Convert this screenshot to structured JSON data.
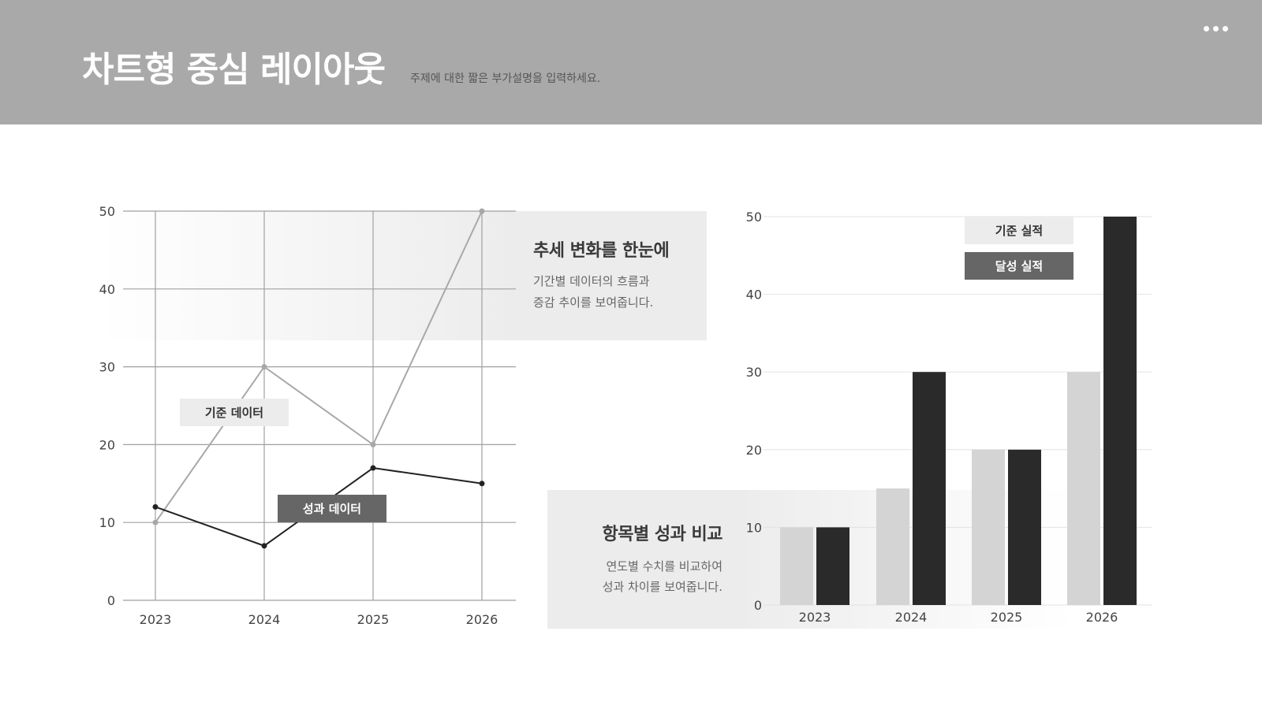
{
  "header": {
    "title": "차트형 중심 레이아웃",
    "subtitle": "주제에 대한 짧은 부가설명을 입력하세요."
  },
  "cards": {
    "trend": {
      "heading": "추세 변화를 한눈에",
      "line1": "기간별 데이터의 흐름과",
      "line2": "증감 추이를 보여줍니다."
    },
    "compare": {
      "heading": "항목별 성과 비교",
      "line1": "연도별 수치를 비교하여",
      "line2": "성과 차이를 보여줍니다."
    }
  },
  "colors": {
    "header": "#a9a9a9",
    "light": "#a8a8a8",
    "dark": "#222222",
    "bar_light": "#d4d4d4",
    "bar_dark": "#2a2a2a",
    "tag_light": "#ececec",
    "tag_dark": "#666666"
  },
  "chart_data": [
    {
      "type": "line",
      "x": [
        "2023",
        "2024",
        "2025",
        "2026"
      ],
      "ylim": [
        0,
        50
      ],
      "yticks": [
        0,
        10,
        20,
        30,
        40,
        50
      ],
      "grid": true,
      "series": [
        {
          "name": "기준 데이터",
          "values": [
            10,
            30,
            20,
            50
          ]
        },
        {
          "name": "성과 데이터",
          "values": [
            12,
            7,
            17,
            15
          ]
        }
      ]
    },
    {
      "type": "bar",
      "categories": [
        "2023",
        "2024",
        "2025",
        "2026"
      ],
      "ylim": [
        0,
        50
      ],
      "yticks": [
        0,
        10,
        20,
        30,
        40,
        50
      ],
      "grid": true,
      "legend": "top-right",
      "series": [
        {
          "name": "기준 실적",
          "values": [
            10,
            15,
            20,
            30
          ]
        },
        {
          "name": "달성 실적",
          "values": [
            10,
            30,
            20,
            50
          ]
        }
      ]
    }
  ]
}
